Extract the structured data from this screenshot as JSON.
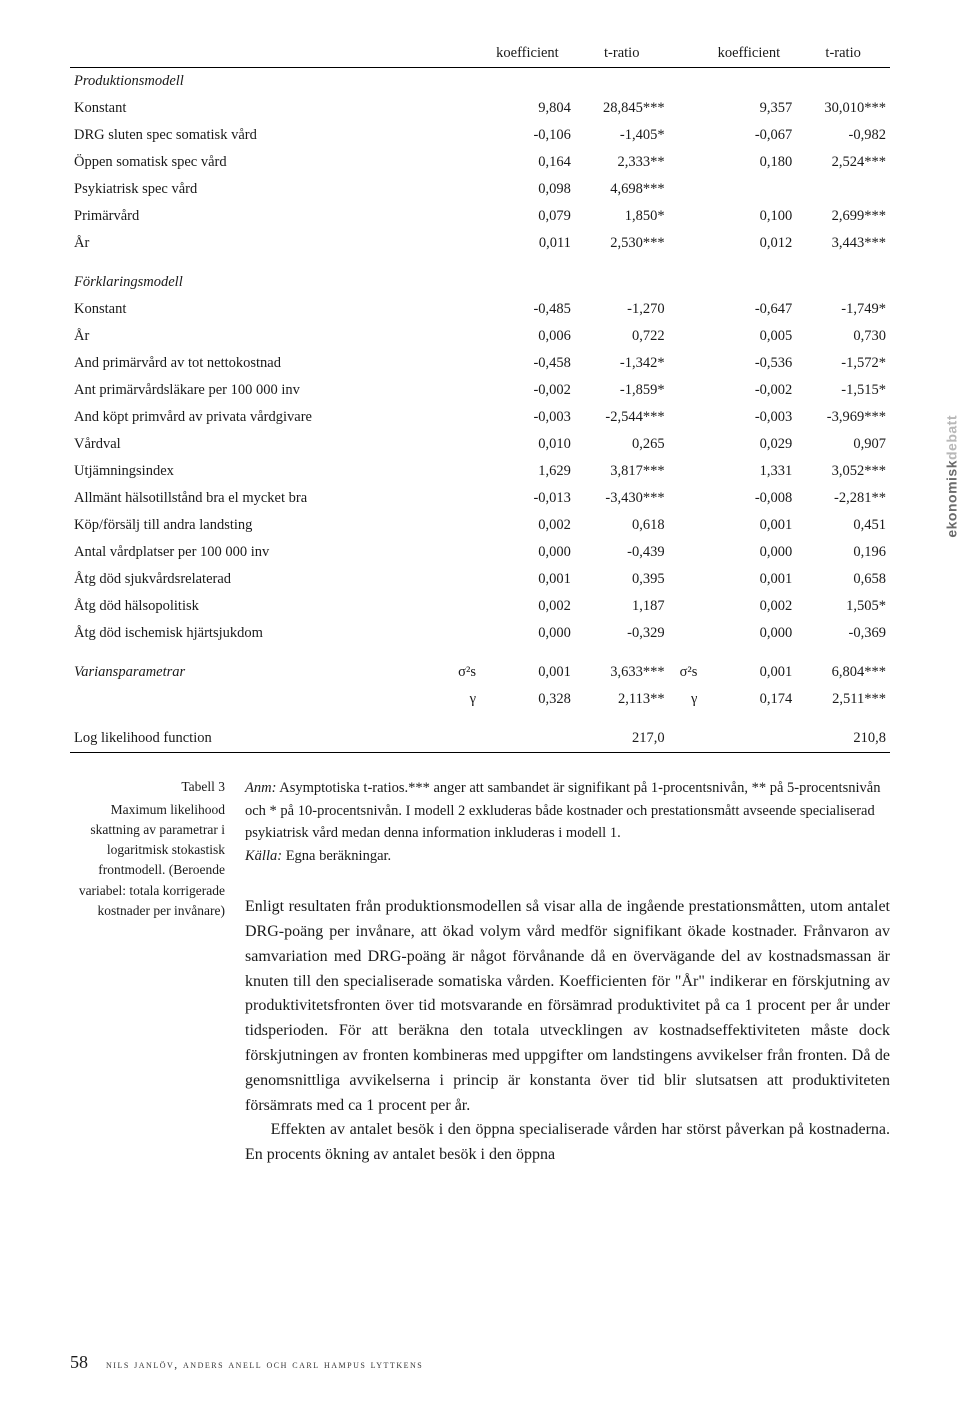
{
  "sideLabel": {
    "part1": "ekonomisk",
    "part2": "debatt"
  },
  "headers": {
    "k": "koefficient",
    "t": "t-ratio"
  },
  "sections": {
    "prod": "Produktionsmodell",
    "fork": "Förklaringsmodell",
    "var": "Variansparametrar",
    "log": "Log likelihood function"
  },
  "symbols": {
    "sigma": "σ²s",
    "gamma": "γ"
  },
  "prod": [
    {
      "l": "Konstant",
      "k1": "9,804",
      "t1": "28,845***",
      "k2": "9,357",
      "t2": "30,010***"
    },
    {
      "l": "DRG sluten spec somatisk vård",
      "k1": "-0,106",
      "t1": "-1,405*",
      "k2": "-0,067",
      "t2": "-0,982"
    },
    {
      "l": "Öppen somatisk spec vård",
      "k1": "0,164",
      "t1": "2,333**",
      "k2": "0,180",
      "t2": "2,524***"
    },
    {
      "l": "Psykiatrisk spec vård",
      "k1": "0,098",
      "t1": "4,698***",
      "k2": "",
      "t2": ""
    },
    {
      "l": "Primärvård",
      "k1": "0,079",
      "t1": "1,850*",
      "k2": "0,100",
      "t2": "2,699***"
    },
    {
      "l": "År",
      "k1": "0,011",
      "t1": "2,530***",
      "k2": "0,012",
      "t2": "3,443***"
    }
  ],
  "fork": [
    {
      "l": "Konstant",
      "k1": "-0,485",
      "t1": "-1,270",
      "k2": "-0,647",
      "t2": "-1,749*"
    },
    {
      "l": "År",
      "k1": "0,006",
      "t1": "0,722",
      "k2": "0,005",
      "t2": "0,730"
    },
    {
      "l": "And primärvård av tot nettokostnad",
      "k1": "-0,458",
      "t1": "-1,342*",
      "k2": "-0,536",
      "t2": "-1,572*"
    },
    {
      "l": "Ant primärvårdsläkare per 100 000 inv",
      "k1": "-0,002",
      "t1": "-1,859*",
      "k2": "-0,002",
      "t2": "-1,515*"
    },
    {
      "l": "And köpt primvård av privata vårdgivare",
      "k1": "-0,003",
      "t1": "-2,544***",
      "k2": "-0,003",
      "t2": "-3,969***"
    },
    {
      "l": "Vårdval",
      "k1": "0,010",
      "t1": "0,265",
      "k2": "0,029",
      "t2": "0,907"
    },
    {
      "l": "Utjämningsindex",
      "k1": "1,629",
      "t1": "3,817***",
      "k2": "1,331",
      "t2": "3,052***"
    },
    {
      "l": "Allmänt hälsotillstånd bra el mycket bra",
      "k1": "-0,013",
      "t1": "-3,430***",
      "k2": "-0,008",
      "t2": "-2,281**"
    },
    {
      "l": "Köp/försälj till andra landsting",
      "k1": "0,002",
      "t1": "0,618",
      "k2": "0,001",
      "t2": "0,451"
    },
    {
      "l": "Antal vårdplatser per 100 000 inv",
      "k1": "0,000",
      "t1": "-0,439",
      "k2": "0,000",
      "t2": "0,196"
    },
    {
      "l": "Åtg död sjukvårdsrelaterad",
      "k1": "0,001",
      "t1": "0,395",
      "k2": "0,001",
      "t2": "0,658"
    },
    {
      "l": "Åtg död hälsopolitisk",
      "k1": "0,002",
      "t1": "1,187",
      "k2": "0,002",
      "t2": "1,505*"
    },
    {
      "l": "Åtg död ischemisk hjärtsjukdom",
      "k1": "0,000",
      "t1": "-0,329",
      "k2": "0,000",
      "t2": "-0,369"
    }
  ],
  "var": [
    {
      "sym": "sigma",
      "k1": "0,001",
      "t1": "3,633***",
      "k2": "0,001",
      "t2": "6,804***",
      "sym2": "sigma"
    },
    {
      "sym": "gamma",
      "k1": "0,328",
      "t1": "2,113**",
      "k2": "0,174",
      "t2": "2,511***",
      "sym2": "gamma"
    }
  ],
  "loglik": {
    "v1": "217,0",
    "v2": "210,8"
  },
  "caption": {
    "title": "Tabell 3",
    "body": "Maximum likelihood skattning av parametrar i logaritmisk stokastisk frontmodell. (Beroende variabel: totala korrigerade kostnader per invånare)"
  },
  "note": {
    "anm": "Anm:",
    "text": " Asymptotiska t-ratios.*** anger att sambandet är signifikant på 1-procentsnivån, ** på 5-procentsnivån och * på 10-procentsnivån. I modell 2 exkluderas både kostnader och prestationsmått avseende specialiserad psykiatrisk vård medan denna information inkluderas i modell 1.",
    "srcLabel": "Källa:",
    "srcText": " Egna beräkningar."
  },
  "body": {
    "p1": "Enligt resultaten från produktionsmodellen så visar alla de ingående prestationsmåtten, utom antalet DRG-poäng per invånare, att ökad volym vård medför signifikant ökade kostnader. Frånvaron av samvariation med DRG-poäng är något förvånande då en övervägande del av kostnadsmassan är knuten till den specialiserade somatiska vården. Koefficienten för \"År\" indikerar en förskjutning av produktivitetsfronten över tid motsvarande en försämrad produktivitet på ca 1 procent per år under tidsperioden. För att beräkna den totala utvecklingen av kostnadseffektiviteten måste dock förskjutningen av fronten kombineras med uppgifter om landstingens avvikelser från fronten. Då de genomsnittliga avvikelserna i princip är konstanta över tid blir slutsatsen att produktiviteten försämrats med ca 1 procent per år.",
    "p2": "Effekten av antalet besök i den öppna specialiserade vården har störst påverkan på kostnaderna. En procents ökning av antalet besök i den öppna"
  },
  "footer": {
    "page": "58",
    "authors": "nils janlöv, anders anell och carl hampus lyttkens"
  }
}
